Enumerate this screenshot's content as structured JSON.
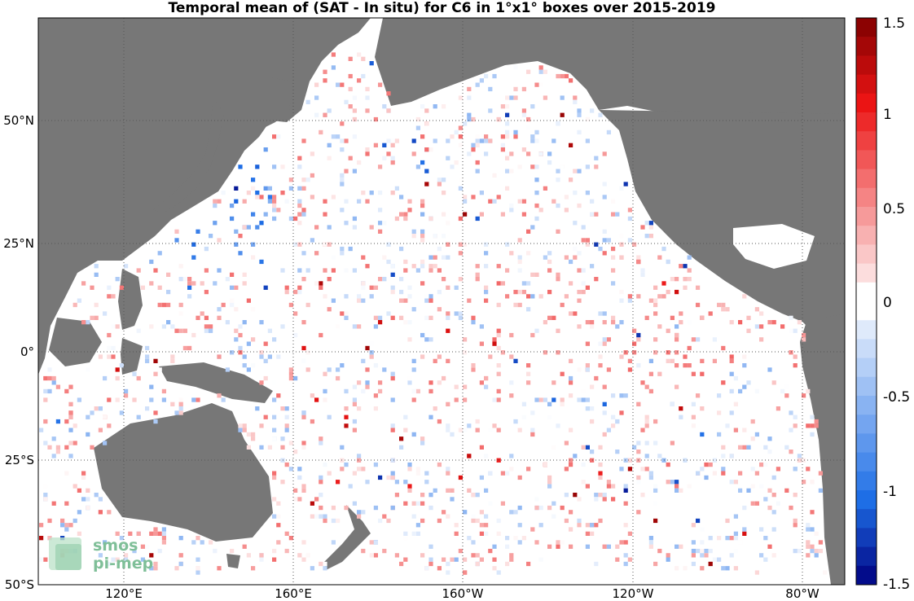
{
  "title": "Temporal mean of (SAT - In situ) for C6 in 1°x1° boxes over 2015-2019",
  "map": {
    "lat_labels": [
      "50°N",
      "25°N",
      "0°",
      "25°S",
      "50°S"
    ],
    "lon_labels": [
      "120°E",
      "160°E",
      "160°W",
      "120°W",
      "80°W"
    ],
    "land_color": "#777777",
    "ocean_color": "#ffffff",
    "grid_style": "dotted"
  },
  "colorbar": {
    "min": -1.5,
    "max": 1.5,
    "tick_labels": [
      "1.5",
      "1",
      "0.5",
      "0",
      "-0.5",
      "-1",
      "-1.5"
    ],
    "low_color": "#000080",
    "zero_color": "#ffffff",
    "high_color": "#800000"
  },
  "logo": {
    "line1": "smos",
    "line2": "pi-mep"
  }
}
